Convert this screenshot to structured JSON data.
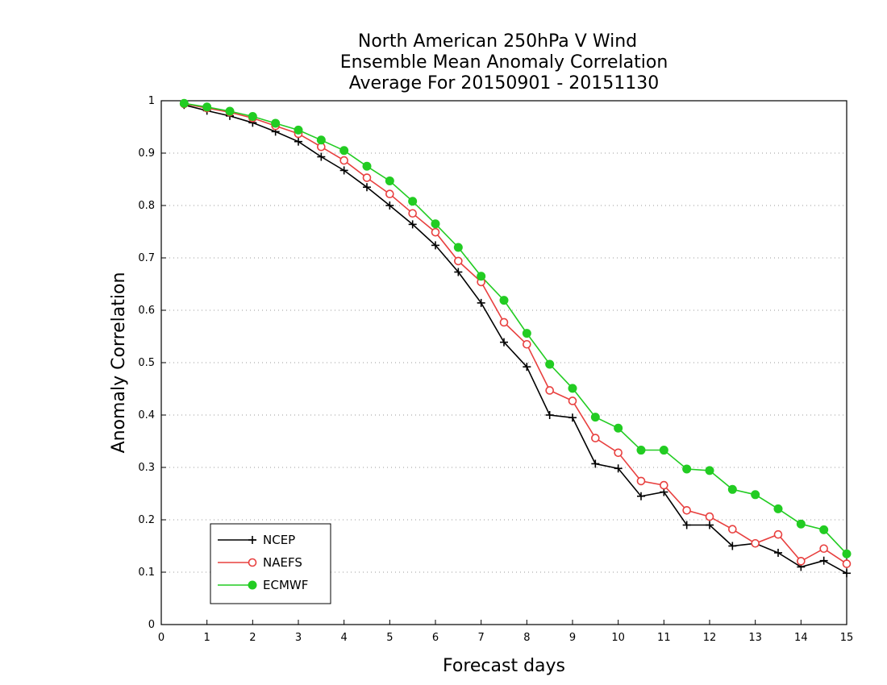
{
  "chart_data": {
    "type": "line",
    "title": [
      "North American 250hPa V Wind",
      "Ensemble Mean Anomaly Correlation",
      "Average For 20150901 - 20151130"
    ],
    "xlabel": "Forecast days",
    "ylabel": "Anomaly Correlation",
    "xlim": [
      0,
      15
    ],
    "ylim": [
      0,
      1
    ],
    "xticks": [
      0,
      1,
      2,
      3,
      4,
      5,
      6,
      7,
      8,
      9,
      10,
      11,
      12,
      13,
      14,
      15
    ],
    "yticks": [
      0,
      0.1,
      0.2,
      0.3,
      0.4,
      0.5,
      0.6,
      0.7,
      0.8,
      0.9,
      1
    ],
    "ytick_labels": [
      "0",
      "0.1",
      "0.2",
      "0.3",
      "0.4",
      "0.5",
      "0.6",
      "0.7",
      "0.8",
      "0.9",
      "1"
    ],
    "grid": "horizontal dotted",
    "legend_position": "bottom-left",
    "x": [
      0.5,
      1,
      1.5,
      2,
      2.5,
      3,
      3.5,
      4,
      4.5,
      5,
      5.5,
      6,
      6.5,
      7,
      7.5,
      8,
      8.5,
      9,
      9.5,
      10,
      10.5,
      11,
      11.5,
      12,
      12.5,
      13,
      13.5,
      14,
      14.5,
      15
    ],
    "series": [
      {
        "name": "NCEP",
        "color": "#000000",
        "marker": "plus",
        "values": [
          0.992,
          0.981,
          0.971,
          0.958,
          0.941,
          0.922,
          0.893,
          0.867,
          0.835,
          0.8,
          0.764,
          0.724,
          0.673,
          0.614,
          0.539,
          0.492,
          0.4,
          0.395,
          0.307,
          0.298,
          0.245,
          0.253,
          0.19,
          0.19,
          0.15,
          0.155,
          0.137,
          0.11,
          0.122,
          0.098
        ]
      },
      {
        "name": "NAEFS",
        "color": "#e8403f",
        "marker": "open-circle",
        "values": [
          0.994,
          0.986,
          0.978,
          0.967,
          0.952,
          0.937,
          0.912,
          0.886,
          0.853,
          0.822,
          0.785,
          0.749,
          0.694,
          0.654,
          0.577,
          0.535,
          0.447,
          0.427,
          0.356,
          0.328,
          0.274,
          0.266,
          0.218,
          0.206,
          0.182,
          0.155,
          0.172,
          0.121,
          0.145,
          0.116
        ]
      },
      {
        "name": "ECMWF",
        "color": "#22cc22",
        "marker": "filled-circle",
        "values": [
          0.995,
          0.988,
          0.98,
          0.97,
          0.957,
          0.944,
          0.925,
          0.905,
          0.875,
          0.847,
          0.808,
          0.765,
          0.72,
          0.665,
          0.619,
          0.556,
          0.497,
          0.451,
          0.396,
          0.375,
          0.333,
          0.333,
          0.297,
          0.294,
          0.258,
          0.248,
          0.221,
          0.192,
          0.181,
          0.135
        ]
      }
    ]
  }
}
